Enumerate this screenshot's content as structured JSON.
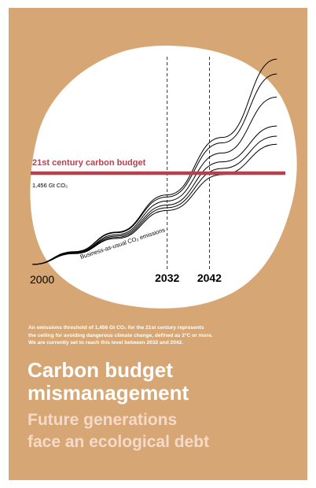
{
  "poster": {
    "background": "#d6a774",
    "caption_lines": [
      "An emissions threshold of 1,456 Gt CO₂ for the 21st century represents",
      "the ceiling for avoiding dangerous climate change, defined as 2°C or more.",
      "We are currently set to reach this level between 2032 and 2042."
    ],
    "title_lines": [
      "Carbon budget",
      "mismanagement"
    ],
    "subtitle_lines": [
      "Future generations",
      "face an ecological debt"
    ]
  },
  "chart_data": {
    "type": "line",
    "budget_label": "21st century carbon budget",
    "budget_value_label": "1,456 Gt CO₂",
    "budget_color": "#b5414c",
    "curve_label": "Business-as-usual CO₂ emissions",
    "x_start_label": "2000",
    "markers": [
      {
        "year": 2032,
        "label": "2032"
      },
      {
        "year": 2042,
        "label": "2042"
      }
    ],
    "budget_level": 1456,
    "x_range": [
      2000,
      2060
    ],
    "series": [
      {
        "values": [
          [
            2000,
            0
          ],
          [
            2010,
            190
          ],
          [
            2020,
            480
          ],
          [
            2032,
            1030
          ],
          [
            2045,
            1880
          ],
          [
            2058,
            3040
          ]
        ]
      },
      {
        "values": [
          [
            2000,
            0
          ],
          [
            2010,
            185
          ],
          [
            2020,
            470
          ],
          [
            2032,
            1000
          ],
          [
            2045,
            1800
          ],
          [
            2058,
            2820
          ]
        ]
      },
      {
        "values": [
          [
            2000,
            0
          ],
          [
            2010,
            175
          ],
          [
            2020,
            440
          ],
          [
            2032,
            940
          ],
          [
            2045,
            1650
          ],
          [
            2058,
            2480
          ]
        ]
      },
      {
        "values": [
          [
            2000,
            0
          ],
          [
            2010,
            170
          ],
          [
            2020,
            420
          ],
          [
            2032,
            880
          ],
          [
            2045,
            1520
          ],
          [
            2058,
            2050
          ]
        ]
      },
      {
        "values": [
          [
            2000,
            0
          ],
          [
            2010,
            165
          ],
          [
            2020,
            400
          ],
          [
            2032,
            840
          ],
          [
            2045,
            1420
          ],
          [
            2058,
            1900
          ]
        ]
      },
      {
        "values": [
          [
            2000,
            0
          ],
          [
            2010,
            160
          ],
          [
            2020,
            385
          ],
          [
            2032,
            800
          ],
          [
            2045,
            1330
          ],
          [
            2058,
            1780
          ]
        ]
      }
    ]
  }
}
